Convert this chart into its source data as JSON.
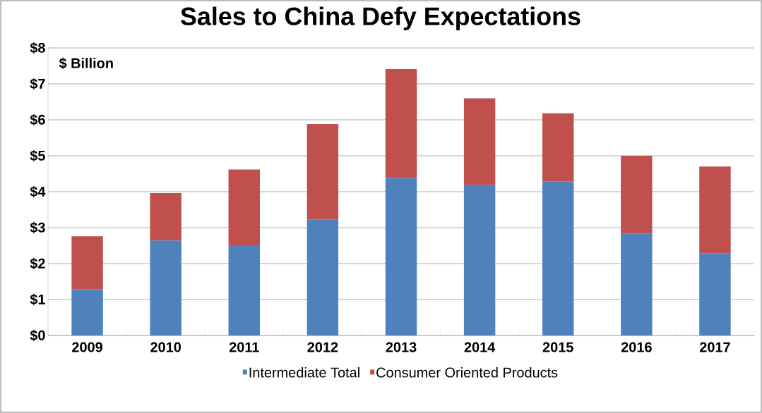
{
  "chart_data": {
    "type": "bar",
    "title": "Sales to China Defy Expectations",
    "stacked": true,
    "categories": [
      "2009",
      "2010",
      "2011",
      "2012",
      "2013",
      "2014",
      "2015",
      "2016",
      "2017"
    ],
    "series": [
      {
        "name": "Intermediate Total",
        "color": "#4f81bd",
        "values": [
          1.29,
          2.64,
          2.51,
          3.22,
          4.38,
          4.18,
          4.29,
          2.84,
          2.28
        ]
      },
      {
        "name": "Consumer Oriented Products",
        "color": "#c0504d",
        "values": [
          1.47,
          1.32,
          2.11,
          2.66,
          3.03,
          2.42,
          1.89,
          2.16,
          2.42
        ]
      }
    ],
    "ylim": [
      0,
      8
    ],
    "yticks": [
      {
        "value": 0,
        "label": "$0"
      },
      {
        "value": 1,
        "label": "$1"
      },
      {
        "value": 2,
        "label": "$2"
      },
      {
        "value": 3,
        "label": "$3"
      },
      {
        "value": 4,
        "label": "$4"
      },
      {
        "value": 5,
        "label": "$5"
      },
      {
        "value": 6,
        "label": "$6"
      },
      {
        "value": 7,
        "label": "$7"
      },
      {
        "value": 8,
        "label": "$8"
      }
    ],
    "grid": "y",
    "legend": "bottom",
    "annotations": [
      "$ Billion"
    ]
  }
}
